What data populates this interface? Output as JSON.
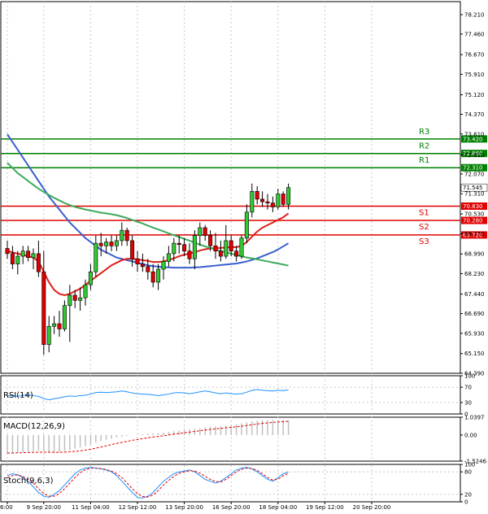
{
  "chart_data": [
    {
      "type": "candlestick",
      "panel": "price",
      "ylim": [
        64.39,
        78.71
      ],
      "y_ticks": [
        "78.210",
        "77.460",
        "76.670",
        "75.910",
        "75.120",
        "74.370",
        "73.610",
        "72.810",
        "72.070",
        "71.310",
        "70.530",
        "69.770",
        "68.990",
        "68.230",
        "67.440",
        "66.690",
        "65.930",
        "65.150",
        "64.390"
      ],
      "x_ticks": [
        "6:00",
        "9 Sep 20:00",
        "11 Sep 04:00",
        "12 Sep 12:00",
        "13 Sep 20:00",
        "16 Sep 20:00",
        "18 Sep 04:00",
        "19 Sep 12:00",
        "20 Sep 20:00"
      ],
      "x_tick_index": [
        0,
        7,
        16,
        25,
        34,
        43,
        52,
        61,
        70
      ],
      "candles": [
        {
          "o": 69.2,
          "h": 69.5,
          "l": 68.8,
          "c": 69.0
        },
        {
          "o": 69.0,
          "h": 69.3,
          "l": 68.4,
          "c": 68.6
        },
        {
          "o": 68.6,
          "h": 69.1,
          "l": 68.2,
          "c": 68.9
        },
        {
          "o": 68.9,
          "h": 69.3,
          "l": 68.6,
          "c": 69.1
        },
        {
          "o": 69.1,
          "h": 69.3,
          "l": 68.7,
          "c": 68.85
        },
        {
          "o": 68.85,
          "h": 69.2,
          "l": 68.4,
          "c": 69.0
        },
        {
          "o": 69.0,
          "h": 69.5,
          "l": 68.1,
          "c": 68.3
        },
        {
          "o": 68.3,
          "h": 69.1,
          "l": 65.1,
          "c": 65.5
        },
        {
          "o": 65.5,
          "h": 66.6,
          "l": 65.2,
          "c": 66.2
        },
        {
          "o": 66.2,
          "h": 66.6,
          "l": 65.9,
          "c": 66.3
        },
        {
          "o": 66.3,
          "h": 66.8,
          "l": 65.8,
          "c": 66.1
        },
        {
          "o": 66.1,
          "h": 67.2,
          "l": 66.0,
          "c": 67.0
        },
        {
          "o": 67.0,
          "h": 67.8,
          "l": 65.6,
          "c": 67.4
        },
        {
          "o": 67.4,
          "h": 67.6,
          "l": 66.9,
          "c": 67.2
        },
        {
          "o": 67.2,
          "h": 67.7,
          "l": 66.8,
          "c": 67.3
        },
        {
          "o": 67.3,
          "h": 68.0,
          "l": 67.0,
          "c": 67.8
        },
        {
          "o": 67.8,
          "h": 68.6,
          "l": 67.6,
          "c": 68.3
        },
        {
          "o": 68.3,
          "h": 69.7,
          "l": 68.1,
          "c": 69.4
        },
        {
          "o": 69.4,
          "h": 69.8,
          "l": 68.9,
          "c": 69.3
        },
        {
          "o": 69.3,
          "h": 69.6,
          "l": 69.0,
          "c": 69.45
        },
        {
          "o": 69.45,
          "h": 69.7,
          "l": 69.1,
          "c": 69.3
        },
        {
          "o": 69.3,
          "h": 69.7,
          "l": 69.1,
          "c": 69.5
        },
        {
          "o": 69.5,
          "h": 70.2,
          "l": 69.3,
          "c": 69.9
        },
        {
          "o": 69.9,
          "h": 70.0,
          "l": 69.3,
          "c": 69.5
        },
        {
          "o": 69.5,
          "h": 69.7,
          "l": 68.5,
          "c": 68.8
        },
        {
          "o": 68.8,
          "h": 69.1,
          "l": 68.3,
          "c": 68.6
        },
        {
          "o": 68.6,
          "h": 69.0,
          "l": 68.3,
          "c": 68.5
        },
        {
          "o": 68.5,
          "h": 68.8,
          "l": 68.0,
          "c": 68.3
        },
        {
          "o": 68.3,
          "h": 68.6,
          "l": 67.7,
          "c": 67.9
        },
        {
          "o": 67.9,
          "h": 68.6,
          "l": 67.6,
          "c": 68.4
        },
        {
          "o": 68.4,
          "h": 68.9,
          "l": 68.0,
          "c": 68.7
        },
        {
          "o": 68.7,
          "h": 69.3,
          "l": 68.5,
          "c": 69.0
        },
        {
          "o": 69.0,
          "h": 69.6,
          "l": 68.7,
          "c": 69.4
        },
        {
          "o": 69.4,
          "h": 69.7,
          "l": 69.0,
          "c": 69.35
        },
        {
          "o": 69.35,
          "h": 69.6,
          "l": 68.9,
          "c": 69.1
        },
        {
          "o": 69.1,
          "h": 69.4,
          "l": 68.6,
          "c": 68.8
        },
        {
          "o": 68.8,
          "h": 69.9,
          "l": 68.4,
          "c": 69.7
        },
        {
          "o": 69.7,
          "h": 70.2,
          "l": 69.3,
          "c": 70.0
        },
        {
          "o": 70.0,
          "h": 70.1,
          "l": 69.5,
          "c": 69.7
        },
        {
          "o": 69.7,
          "h": 69.9,
          "l": 69.1,
          "c": 69.3
        },
        {
          "o": 69.3,
          "h": 69.8,
          "l": 68.8,
          "c": 69.1
        },
        {
          "o": 69.1,
          "h": 69.5,
          "l": 68.7,
          "c": 68.9
        },
        {
          "o": 68.9,
          "h": 70.1,
          "l": 68.8,
          "c": 69.5
        },
        {
          "o": 69.5,
          "h": 69.7,
          "l": 68.9,
          "c": 69.1
        },
        {
          "o": 69.1,
          "h": 69.3,
          "l": 68.7,
          "c": 68.9
        },
        {
          "o": 68.9,
          "h": 69.7,
          "l": 68.8,
          "c": 69.6
        },
        {
          "o": 69.6,
          "h": 70.9,
          "l": 69.4,
          "c": 70.6
        },
        {
          "o": 70.6,
          "h": 71.7,
          "l": 70.4,
          "c": 71.4
        },
        {
          "o": 71.4,
          "h": 71.6,
          "l": 70.9,
          "c": 71.1
        },
        {
          "o": 71.1,
          "h": 71.4,
          "l": 70.8,
          "c": 71.0
        },
        {
          "o": 71.0,
          "h": 71.3,
          "l": 70.7,
          "c": 70.95
        },
        {
          "o": 70.95,
          "h": 71.2,
          "l": 70.6,
          "c": 70.8
        },
        {
          "o": 70.8,
          "h": 71.5,
          "l": 70.7,
          "c": 71.3
        },
        {
          "o": 71.3,
          "h": 71.4,
          "l": 70.8,
          "c": 70.9
        },
        {
          "o": 70.9,
          "h": 71.7,
          "l": 70.7,
          "c": 71.545
        }
      ],
      "series": [
        {
          "name": "",
          "color": "#3a5fcd",
          "values": [
            73.6,
            73.3,
            73.0,
            72.7,
            72.4,
            72.1,
            71.8,
            71.5,
            71.2,
            70.95,
            70.7,
            70.45,
            70.2,
            70.0,
            69.8,
            69.6,
            69.45,
            69.3,
            69.15,
            69.05,
            68.95,
            68.85,
            68.8,
            68.75,
            68.7,
            68.65,
            68.6,
            68.55,
            68.52,
            68.5,
            68.48,
            68.47,
            68.46,
            68.46,
            68.46,
            68.46,
            68.47,
            68.48,
            68.5,
            68.52,
            68.54,
            68.56,
            68.58,
            68.6,
            68.62,
            68.66,
            68.7,
            68.76,
            68.82,
            68.9,
            68.98,
            69.06,
            69.16,
            69.28,
            69.4
          ]
        },
        {
          "name": "",
          "color": "#e0201b",
          "values": [
            69.1,
            69.05,
            69.0,
            68.95,
            68.9,
            68.85,
            68.7,
            68.3,
            67.9,
            67.6,
            67.45,
            67.4,
            67.45,
            67.55,
            67.65,
            67.8,
            67.95,
            68.1,
            68.25,
            68.4,
            68.55,
            68.65,
            68.75,
            68.8,
            68.8,
            68.78,
            68.75,
            68.72,
            68.68,
            68.68,
            68.7,
            68.75,
            68.82,
            68.9,
            68.96,
            69.0,
            69.06,
            69.12,
            69.17,
            69.2,
            69.22,
            69.22,
            69.24,
            69.25,
            69.25,
            69.3,
            69.45,
            69.65,
            69.85,
            70.0,
            70.1,
            70.2,
            70.3,
            70.4,
            70.55
          ]
        },
        {
          "name": "",
          "color": "#3cab5a",
          "values": [
            72.5,
            72.3,
            72.1,
            71.95,
            71.8,
            71.65,
            71.5,
            71.38,
            71.26,
            71.15,
            71.05,
            70.95,
            70.87,
            70.8,
            70.75,
            70.7,
            70.66,
            70.62,
            70.58,
            70.55,
            70.52,
            70.48,
            70.43,
            70.37,
            70.3,
            70.23,
            70.16,
            70.08,
            70.0,
            69.93,
            69.86,
            69.78,
            69.71,
            69.64,
            69.57,
            69.5,
            69.42,
            69.35,
            69.28,
            69.22,
            69.16,
            69.1,
            69.05,
            69.0,
            68.95,
            68.9,
            68.85,
            68.82,
            68.78,
            68.74,
            68.7,
            68.66,
            68.62,
            68.58,
            68.54
          ]
        }
      ],
      "levels": [
        {
          "name": "R3",
          "value": 73.42,
          "label": "73.420",
          "color": "#008000"
        },
        {
          "name": "R2",
          "value": 72.86,
          "label": "72.860",
          "color": "#008000"
        },
        {
          "name": "R1",
          "value": 72.31,
          "label": "72.310",
          "color": "#008000"
        },
        {
          "name": "S1",
          "value": 70.83,
          "label": "70.830",
          "color": "#e00000"
        },
        {
          "name": "S2",
          "value": 70.28,
          "label": "70.280",
          "color": "#e00000"
        },
        {
          "name": "S3",
          "value": 69.72,
          "label": "69.720",
          "color": "#e00000"
        }
      ],
      "last_price": {
        "value": 71.545,
        "label": "71.545"
      }
    },
    {
      "type": "line",
      "panel": "rsi",
      "title": "RSI(14)",
      "ylim": [
        0,
        100
      ],
      "y_ticks": [
        "100",
        "70",
        "30",
        "0"
      ],
      "color": "#1e90ff",
      "values": [
        47,
        48,
        46,
        49,
        50,
        48,
        46,
        40,
        37,
        40,
        42,
        45,
        47,
        46,
        48,
        49,
        52,
        56,
        57,
        56,
        57,
        58,
        60,
        58,
        55,
        53,
        52,
        51,
        50,
        48,
        50,
        52,
        55,
        56,
        55,
        53,
        55,
        58,
        60,
        58,
        55,
        53,
        55,
        53,
        52,
        53,
        57,
        62,
        64,
        62,
        61,
        60,
        62,
        61,
        63
      ]
    },
    {
      "type": "bar",
      "panel": "macd",
      "title": "MACD(12,26,9)",
      "ylim": [
        -1.5246,
        1.0397
      ],
      "y_ticks": [
        "1.0397",
        "0.00",
        "-1.5246"
      ],
      "signal_color": "#e00000",
      "hist_color": "#c0c0c0",
      "hist": [
        -1.1,
        -1.08,
        -1.05,
        -1.02,
        -0.98,
        -0.95,
        -0.92,
        -0.95,
        -1.0,
        -1.05,
        -1.0,
        -0.95,
        -0.88,
        -0.8,
        -0.72,
        -0.65,
        -0.55,
        -0.45,
        -0.35,
        -0.28,
        -0.22,
        -0.15,
        -0.1,
        -0.05,
        0.0,
        0.02,
        0.05,
        0.08,
        0.1,
        0.12,
        0.15,
        0.18,
        0.22,
        0.26,
        0.3,
        0.33,
        0.36,
        0.4,
        0.45,
        0.48,
        0.5,
        0.52,
        0.55,
        0.58,
        0.62,
        0.68,
        0.74,
        0.8,
        0.84,
        0.86,
        0.87,
        0.88,
        0.88,
        0.87,
        0.86
      ],
      "signal": [
        -1.05,
        -1.05,
        -1.04,
        -1.03,
        -1.02,
        -1.01,
        -1.0,
        -1.0,
        -1.0,
        -1.01,
        -1.01,
        -1.0,
        -0.98,
        -0.95,
        -0.92,
        -0.88,
        -0.83,
        -0.77,
        -0.7,
        -0.63,
        -0.56,
        -0.49,
        -0.43,
        -0.37,
        -0.31,
        -0.26,
        -0.21,
        -0.16,
        -0.12,
        -0.08,
        -0.04,
        0.0,
        0.05,
        0.09,
        0.13,
        0.17,
        0.21,
        0.25,
        0.29,
        0.33,
        0.36,
        0.39,
        0.42,
        0.45,
        0.48,
        0.52,
        0.56,
        0.6,
        0.64,
        0.68,
        0.71,
        0.74,
        0.76,
        0.78,
        0.8
      ]
    },
    {
      "type": "line",
      "panel": "stoch",
      "title": "Stoch(9,6,3)",
      "ylim": [
        0,
        100
      ],
      "y_ticks": [
        "100",
        "80",
        "20",
        "0"
      ],
      "series": [
        {
          "name": "",
          "color": "#1e90ff",
          "values": [
            70,
            75,
            72,
            65,
            55,
            40,
            25,
            15,
            12,
            20,
            30,
            45,
            60,
            75,
            85,
            90,
            92,
            90,
            88,
            85,
            80,
            70,
            55,
            40,
            25,
            12,
            10,
            15,
            25,
            40,
            55,
            65,
            75,
            80,
            82,
            85,
            80,
            70,
            60,
            55,
            50,
            55,
            65,
            75,
            85,
            90,
            92,
            88,
            80,
            70,
            60,
            55,
            65,
            75,
            80
          ]
        },
        {
          "name": "",
          "color": "#e00000",
          "values": [
            65,
            70,
            72,
            68,
            60,
            50,
            35,
            22,
            15,
            15,
            22,
            35,
            50,
            65,
            78,
            86,
            90,
            90,
            89,
            86,
            82,
            75,
            65,
            50,
            35,
            22,
            14,
            13,
            18,
            30,
            45,
            57,
            68,
            76,
            80,
            83,
            82,
            76,
            68,
            60,
            54,
            53,
            60,
            70,
            80,
            87,
            90,
            89,
            84,
            75,
            65,
            58,
            60,
            70,
            76
          ]
        }
      ]
    }
  ]
}
